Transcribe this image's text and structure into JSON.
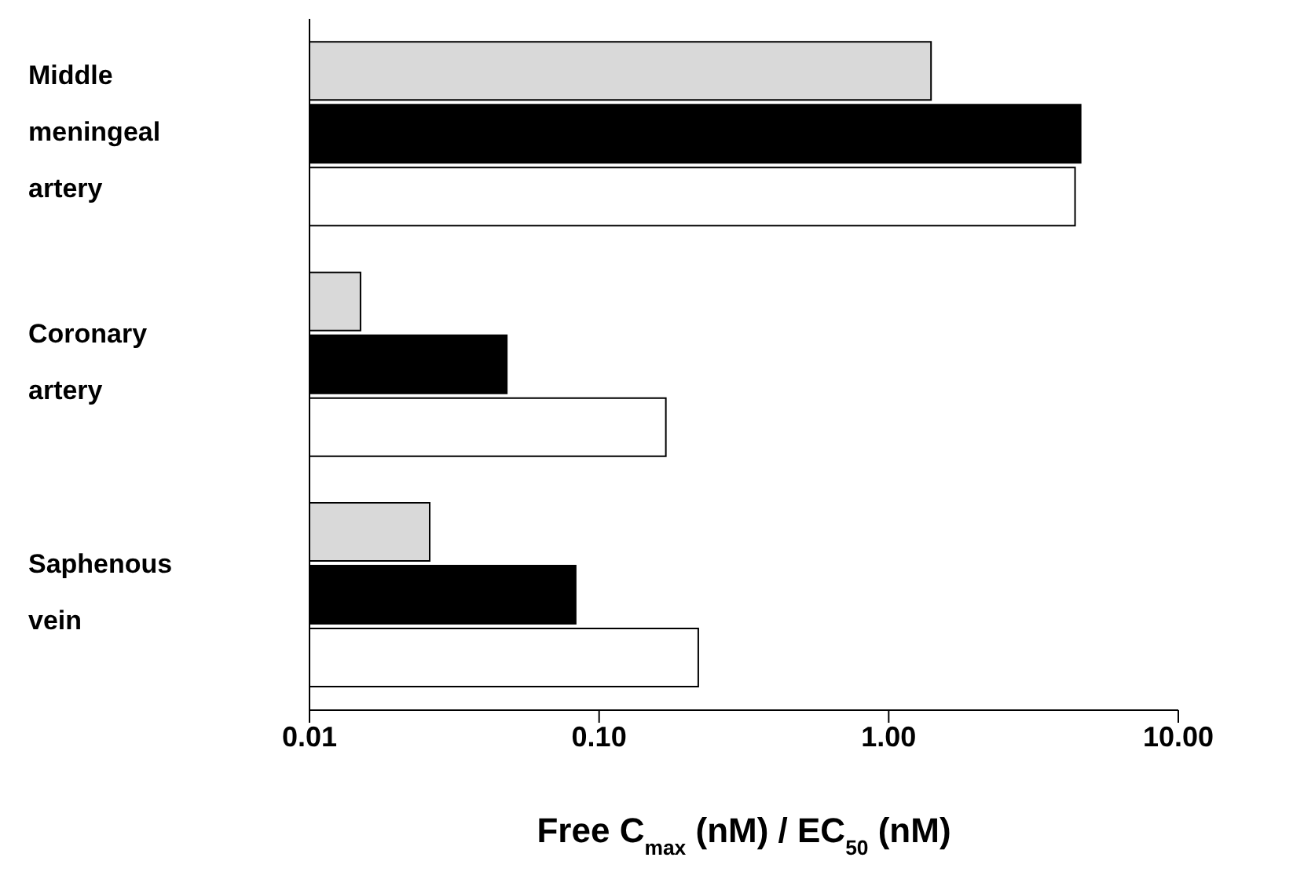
{
  "chart_data": {
    "type": "bar",
    "orientation": "horizontal",
    "xlabel": "Free C$_{max}$ (nM) / EC$_{50}$ (nM)",
    "categories": [
      "Middle meningeal artery",
      "Coronary artery",
      "Saphenous vein"
    ],
    "series": [
      {
        "color": "#d9d9d9",
        "values": [
          1.4,
          0.015,
          0.026
        ]
      },
      {
        "color": "#000000",
        "values": [
          4.6,
          0.048,
          0.083
        ]
      },
      {
        "color": "#ffffff",
        "values": [
          4.4,
          0.17,
          0.22
        ]
      }
    ],
    "log": "x",
    "xlim": [
      0.01,
      10
    ],
    "xticks": [
      {
        "value": 0.01,
        "label": "0.01"
      },
      {
        "value": 0.1,
        "label": "0.10"
      },
      {
        "value": 1,
        "label": "1.00"
      },
      {
        "value": 10,
        "label": "10.00"
      }
    ],
    "grid": false,
    "legend": false
  }
}
